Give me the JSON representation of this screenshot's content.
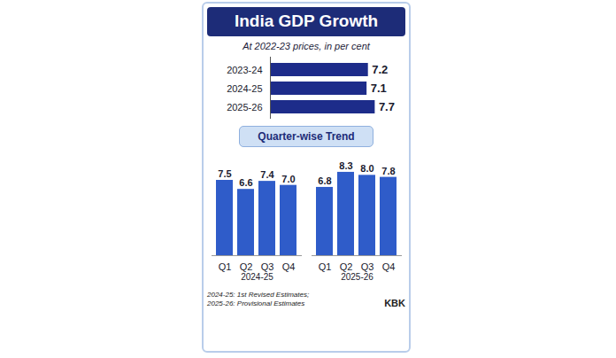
{
  "title": "India GDP Growth",
  "subtitle": "At 2022-23 prices, in per cent",
  "footnote": [
    "2024-25: 1st Revised Estimates;",
    "2025-26: Provisional Estimates"
  ],
  "credit": "KBK",
  "chart_data": [
    {
      "type": "bar",
      "orientation": "horizontal",
      "categories": [
        "2023-24",
        "2024-25",
        "2025-26"
      ],
      "values": [
        7.2,
        7.1,
        7.7
      ],
      "color": "#1d2c8a",
      "xlim": [
        0,
        8
      ],
      "data_labels": true,
      "tick_labels": "y"
    },
    {
      "type": "bar",
      "title": "Quarter-wise Trend",
      "categories": [
        "Q1",
        "Q2",
        "Q3",
        "Q4"
      ],
      "series": [
        {
          "name": "2024-25",
          "values": [
            7.5,
            6.6,
            7.4,
            7.0
          ],
          "value_labels": [
            "7.5",
            "6.6",
            "7.4",
            "7.0"
          ]
        },
        {
          "name": "2025-26",
          "values": [
            6.8,
            8.3,
            8.0,
            7.8
          ],
          "value_labels": [
            "6.8",
            "8.3",
            "8.0",
            "7.8"
          ]
        }
      ],
      "color": "#2f5cc9",
      "ylim": [
        0,
        9
      ],
      "data_labels": true,
      "tick_labels": "x"
    }
  ]
}
